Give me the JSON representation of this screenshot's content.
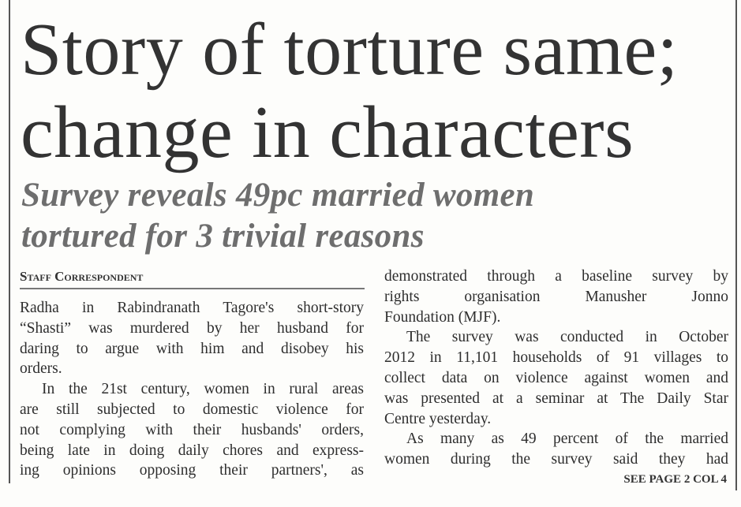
{
  "headline": [
    "Story of torture same;",
    "change in characters"
  ],
  "subheadline": [
    "Survey reveals 49pc married women",
    "tortured for 3 trivial reasons"
  ],
  "byline": "Staff Correspondent",
  "left_column": [
    "Radha in Rabindranath Tagore's short-story",
    "“Shasti” was murdered by her husband for",
    "daring to argue with him and disobey his",
    "orders.",
    "In the 21st century, women in rural areas",
    "are still subjected to domestic violence for",
    "not complying with their husbands' orders,",
    "being late in doing daily chores and express-",
    "ing opinions opposing their partners', as"
  ],
  "right_column": [
    "demonstrated through a baseline survey by",
    "rights organisation Manusher Jonno",
    "Foundation (MJF).",
    "The survey was conducted in October",
    "2012 in 11,101 households of 91 villages to",
    "collect data on violence against women and",
    "was presented at a seminar at The Daily Star",
    "Centre yesterday.",
    "As many as 49 percent of the married",
    "women during the survey said they had"
  ],
  "continuation": "SEE PAGE 2 COL 4"
}
